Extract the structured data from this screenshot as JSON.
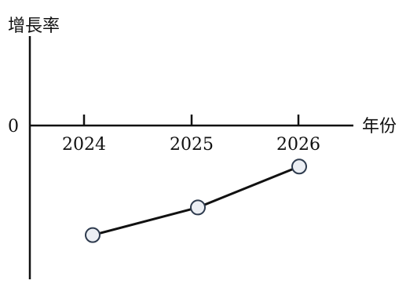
{
  "chart_data": {
    "type": "line",
    "ylabel": "增長率",
    "xlabel": "年份",
    "origin_label": "0",
    "categories": [
      "2024",
      "2025",
      "2026"
    ],
    "series": [
      {
        "values": [
          -1.0,
          -0.75,
          -0.38
        ]
      }
    ],
    "ylim": [
      -1.4,
      0.8
    ],
    "grid": false,
    "colors": {
      "axis": "#111111",
      "line": "#111111",
      "marker_fill": "#eceff4",
      "marker_stroke": "#2e3b4e",
      "text": "#111111"
    }
  }
}
